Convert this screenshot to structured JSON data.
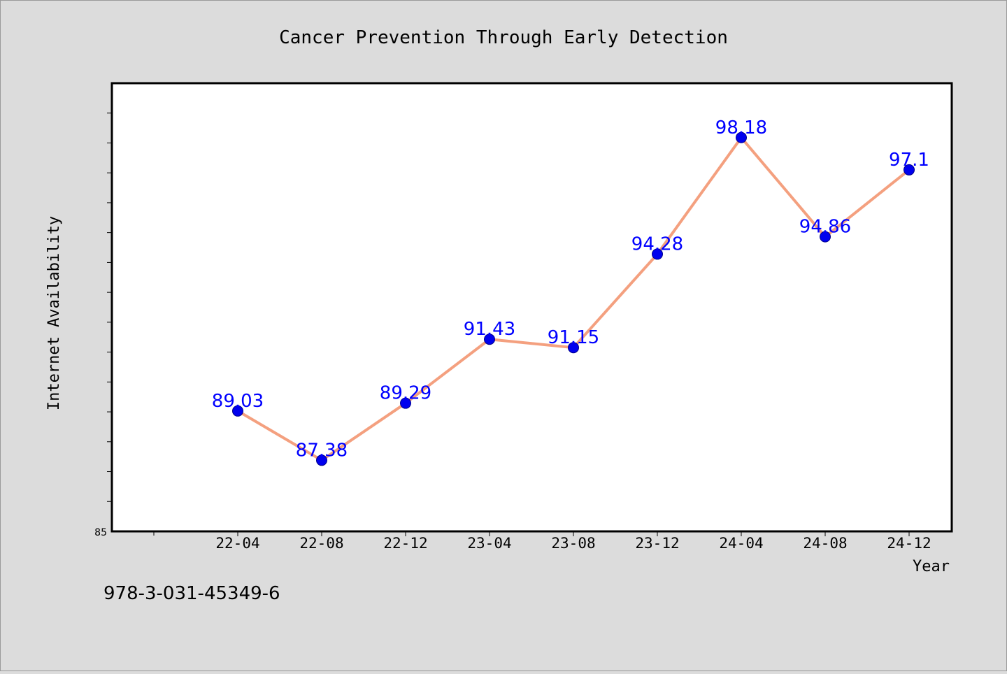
{
  "chart_data": {
    "type": "line",
    "title": "Cancer Prevention Through Early Detection",
    "xlabel": "Year",
    "ylabel": "Internet Availability",
    "categories": [
      "22-04",
      "22-08",
      "22-12",
      "23-04",
      "23-08",
      "23-12",
      "24-04",
      "24-08",
      "24-12"
    ],
    "series": [
      {
        "values": [
          89.03,
          87.38,
          89.29,
          91.43,
          91.15,
          94.28,
          98.18,
          94.86,
          97.1
        ],
        "labels": [
          "89.03",
          "87.38",
          "89.29",
          "91.43",
          "91.15",
          "94.28",
          "98.18",
          "94.86",
          "97.1"
        ]
      }
    ],
    "ylim": [
      85,
      100
    ],
    "ytick_label": "85",
    "grid": false,
    "line_color": "#f4a07f",
    "marker_color": "#0000ee",
    "label_color": "#0000ff"
  },
  "footer": {
    "isbn": "978-3-031-45349-6"
  }
}
